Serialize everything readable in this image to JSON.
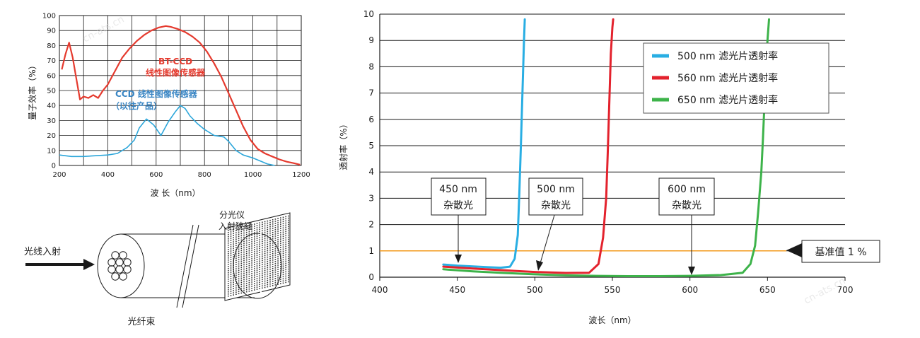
{
  "chart_data": [
    {
      "type": "line",
      "xlabel": "波  长（nm）",
      "ylabel": "量子效率（%）",
      "xlim": [
        200,
        1200
      ],
      "ylim": [
        0,
        100
      ],
      "xticks": [
        200,
        400,
        600,
        800,
        1000,
        1200
      ],
      "yticks": [
        0,
        10,
        20,
        30,
        40,
        50,
        60,
        70,
        80,
        90,
        100
      ],
      "grid": true,
      "annotations": {
        "bt_ccd_line1": "BT-CCD",
        "bt_ccd_line2": "线性图像传感器",
        "ccd_line1": "CCD 线性图像传感器",
        "ccd_line2": "（以往产品）"
      },
      "series": [
        {
          "name": "BT-CCD 线性图像传感器",
          "color": "#e53a2e",
          "x": [
            210,
            225,
            240,
            255,
            270,
            285,
            300,
            320,
            340,
            360,
            380,
            400,
            430,
            460,
            490,
            520,
            550,
            580,
            610,
            640,
            660,
            690,
            720,
            750,
            780,
            810,
            840,
            870,
            900,
            930,
            960,
            990,
            1020,
            1050,
            1080,
            1110,
            1140,
            1170,
            1195
          ],
          "y": [
            64,
            74,
            82,
            72,
            58,
            44,
            46,
            45,
            47,
            45,
            50,
            54,
            63,
            72,
            78,
            83,
            87,
            90,
            92,
            93,
            92.5,
            91,
            89,
            86,
            82,
            76,
            68,
            59,
            48,
            37,
            26,
            17,
            11,
            8,
            6,
            4,
            2.5,
            1.5,
            0.5
          ]
        },
        {
          "name": "CCD 线性图像传感器（以往产品）",
          "color": "#2ca6da",
          "x": [
            200,
            250,
            300,
            350,
            400,
            440,
            480,
            510,
            530,
            560,
            590,
            620,
            650,
            680,
            700,
            720,
            740,
            770,
            800,
            840,
            880,
            900,
            930,
            960,
            1000,
            1030,
            1060,
            1090
          ],
          "y": [
            7,
            6,
            6,
            6.5,
            7,
            8,
            12,
            17,
            25,
            31,
            27,
            20,
            29,
            36,
            40,
            38,
            33,
            28,
            24,
            20,
            19,
            16,
            10,
            7,
            5,
            3,
            1,
            0
          ]
        }
      ]
    },
    {
      "type": "line",
      "xlabel": "波长（nm）",
      "ylabel": "透射率（%）",
      "xlim": [
        400,
        700
      ],
      "ylim": [
        0,
        10
      ],
      "xticks": [
        400,
        450,
        500,
        550,
        600,
        650,
        700
      ],
      "yticks": [
        0,
        1,
        2,
        3,
        4,
        5,
        6,
        7,
        8,
        9,
        10
      ],
      "grid": true,
      "reference_line": {
        "y": 1,
        "label": "基准值 1 %",
        "color": "#f39a1d"
      },
      "callouts": [
        {
          "line1": "450 nm",
          "line2": "杂散光"
        },
        {
          "line1": "500 nm",
          "line2": "杂散光"
        },
        {
          "line1": "600 nm",
          "line2": "杂散光"
        }
      ],
      "series": [
        {
          "name": "500 nm 滤光片透射率",
          "color": "#29aee3",
          "x": [
            441,
            450,
            460,
            470,
            478,
            484,
            487,
            489,
            490,
            491,
            492,
            493,
            493.5
          ],
          "y": [
            0.48,
            0.44,
            0.41,
            0.38,
            0.36,
            0.4,
            0.7,
            1.6,
            3.2,
            5.0,
            7.0,
            9.0,
            9.8
          ]
        },
        {
          "name": "560 nm 滤光片透射率",
          "color": "#e3222d",
          "x": [
            441,
            460,
            480,
            500,
            520,
            535,
            541,
            544,
            546,
            547,
            548,
            549,
            550,
            550.5
          ],
          "y": [
            0.4,
            0.33,
            0.26,
            0.2,
            0.16,
            0.17,
            0.5,
            1.5,
            3.0,
            4.7,
            6.6,
            8.5,
            9.5,
            9.8
          ]
        },
        {
          "name": "650 nm 滤光片透射率",
          "color": "#3db34a",
          "x": [
            441,
            460,
            480,
            500,
            520,
            540,
            560,
            580,
            600,
            620,
            634,
            639,
            642,
            644,
            646,
            647,
            648,
            649,
            650,
            651
          ],
          "y": [
            0.3,
            0.22,
            0.16,
            0.11,
            0.07,
            0.05,
            0.04,
            0.04,
            0.05,
            0.08,
            0.17,
            0.5,
            1.2,
            2.5,
            4.0,
            5.2,
            6.5,
            7.8,
            9.0,
            9.8
          ]
        }
      ]
    }
  ],
  "diagram": {
    "light_in_label": "光线入射",
    "slit_label_line1": "分光仪",
    "slit_label_line2": "入射狭缝",
    "bundle_label": "光纤束"
  }
}
